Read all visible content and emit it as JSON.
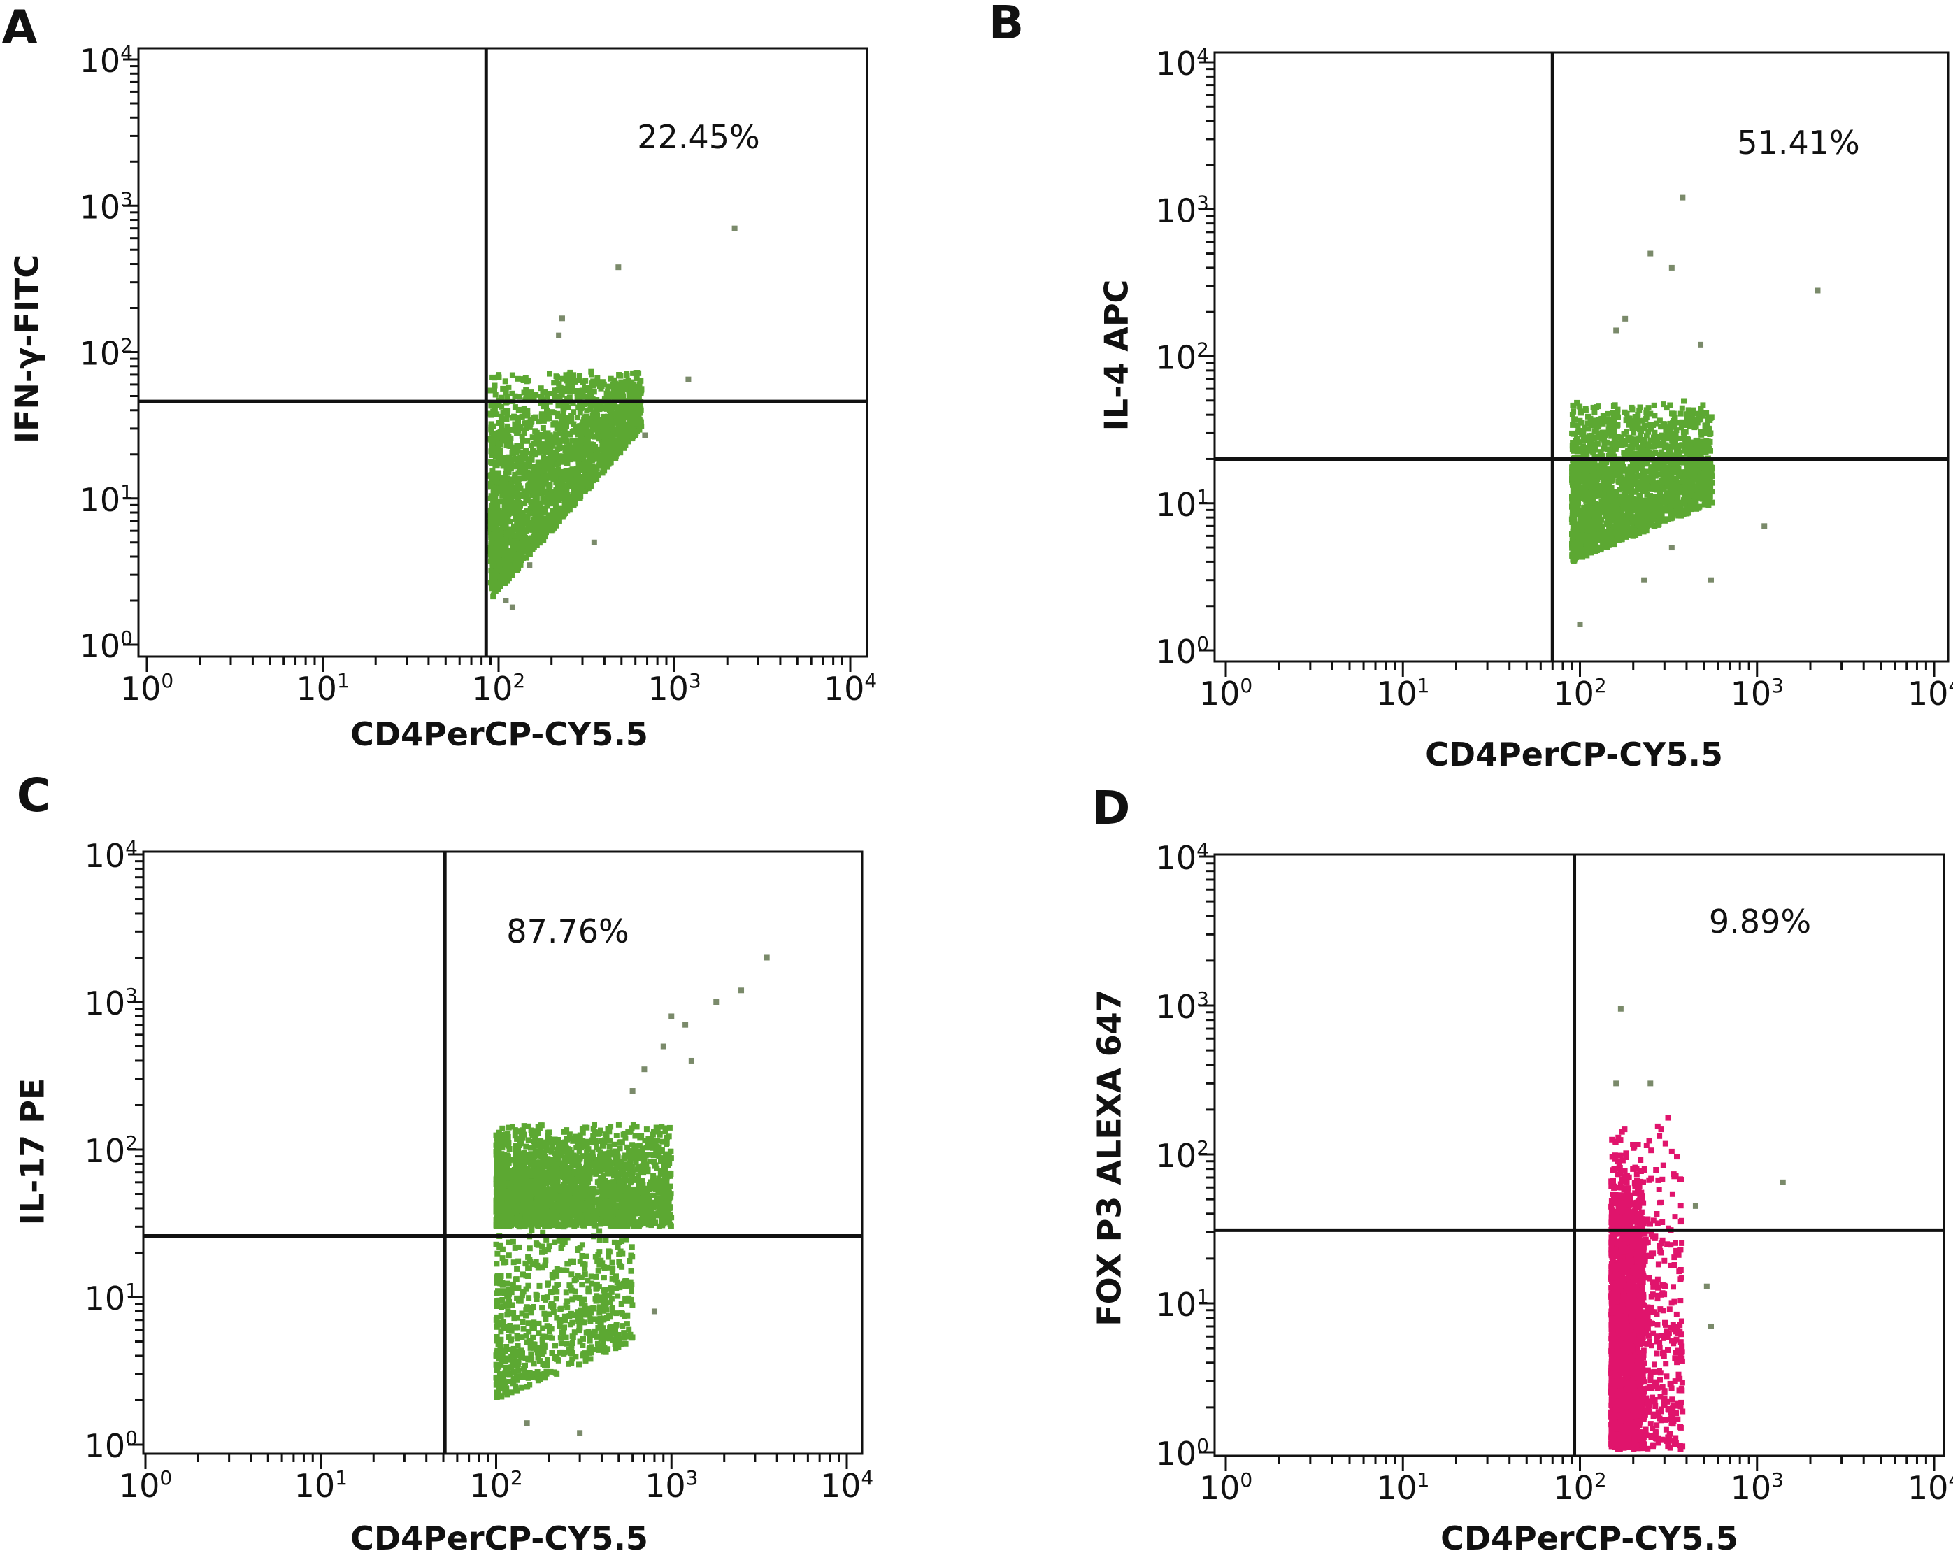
{
  "chart_data": [
    {
      "panel": "A",
      "type": "scatter",
      "xscale": "log",
      "yscale": "log",
      "xlim": [
        1,
        10000
      ],
      "ylim": [
        1,
        10000
      ],
      "xlabel": "CD4PerCP-CY5.5",
      "ylabel": "IFN-γ-FITC",
      "x_ticks": [
        {
          "base": "10",
          "exp": "0"
        },
        {
          "base": "10",
          "exp": "1"
        },
        {
          "base": "10",
          "exp": "2"
        },
        {
          "base": "10",
          "exp": "3"
        },
        {
          "base": "10",
          "exp": "4"
        }
      ],
      "y_ticks": [
        {
          "base": "10",
          "exp": "0"
        },
        {
          "base": "10",
          "exp": "1"
        },
        {
          "base": "10",
          "exp": "2"
        },
        {
          "base": "10",
          "exp": "3"
        },
        {
          "base": "10",
          "exp": "4"
        }
      ],
      "gate": {
        "x": 85,
        "y": 46
      },
      "quadrant_annotation": "22.45%",
      "color": "#5ca832",
      "populations": [
        {
          "x_range": [
            90,
            650
          ],
          "y_range": [
            2,
            75
          ],
          "y_min_at_x_max": 30,
          "count": 2200
        }
      ],
      "outliers": [
        [
          2200,
          700
        ],
        [
          480,
          380
        ],
        [
          1200,
          65
        ],
        [
          230,
          170
        ],
        [
          220,
          130
        ],
        [
          350,
          5
        ],
        [
          680,
          27
        ],
        [
          110,
          2
        ],
        [
          120,
          1.8
        ],
        [
          150,
          3.5
        ]
      ]
    },
    {
      "panel": "B",
      "type": "scatter",
      "xscale": "log",
      "yscale": "log",
      "xlim": [
        1,
        10000
      ],
      "ylim": [
        1,
        10000
      ],
      "xlabel": "CD4PerCP-CY5.5",
      "ylabel": "IL-4 APC",
      "x_ticks": [
        {
          "base": "10",
          "exp": "0"
        },
        {
          "base": "10",
          "exp": "1"
        },
        {
          "base": "10",
          "exp": "2"
        },
        {
          "base": "10",
          "exp": "3"
        },
        {
          "base": "10",
          "exp": "4"
        }
      ],
      "y_ticks": [
        {
          "base": "10",
          "exp": "0"
        },
        {
          "base": "10",
          "exp": "1"
        },
        {
          "base": "10",
          "exp": "2"
        },
        {
          "base": "10",
          "exp": "3"
        },
        {
          "base": "10",
          "exp": "4"
        }
      ],
      "gate": {
        "x": 70,
        "y": 20
      },
      "quadrant_annotation": "51.41%",
      "color": "#5ca832",
      "populations": [
        {
          "x_range": [
            90,
            560
          ],
          "y_range": [
            4,
            50
          ],
          "y_min_at_x_max": 10,
          "count": 2000
        }
      ],
      "outliers": [
        [
          380,
          1200
        ],
        [
          250,
          500
        ],
        [
          330,
          400
        ],
        [
          2200,
          280
        ],
        [
          1100,
          7
        ],
        [
          180,
          180
        ],
        [
          160,
          150
        ],
        [
          480,
          120
        ],
        [
          330,
          5
        ],
        [
          230,
          3
        ],
        [
          100,
          1.5
        ],
        [
          550,
          3
        ]
      ]
    },
    {
      "panel": "C",
      "type": "scatter",
      "xscale": "log",
      "yscale": "log",
      "xlim": [
        1,
        10000
      ],
      "ylim": [
        1,
        10000
      ],
      "xlabel": "CD4PerCP-CY5.5",
      "ylabel": "IL-17 PE",
      "x_ticks": [
        {
          "base": "10",
          "exp": "0"
        },
        {
          "base": "10",
          "exp": "1"
        },
        {
          "base": "10",
          "exp": "2"
        },
        {
          "base": "10",
          "exp": "3"
        },
        {
          "base": "10",
          "exp": "4"
        }
      ],
      "y_ticks": [
        {
          "base": "10",
          "exp": "0"
        },
        {
          "base": "10",
          "exp": "1"
        },
        {
          "base": "10",
          "exp": "2"
        },
        {
          "base": "10",
          "exp": "3"
        },
        {
          "base": "10",
          "exp": "4"
        }
      ],
      "gate": {
        "x": 51,
        "y": 26
      },
      "quadrant_annotation": "87.76%",
      "color": "#5ca832",
      "populations": [
        {
          "x_range": [
            100,
            1000
          ],
          "y_range": [
            30,
            150
          ],
          "count": 2200
        },
        {
          "x_range": [
            100,
            600
          ],
          "y_range": [
            2,
            30
          ],
          "y_min_at_x_max": 5,
          "count": 700
        }
      ],
      "outliers": [
        [
          3500,
          2000
        ],
        [
          2500,
          1200
        ],
        [
          1800,
          1000
        ],
        [
          1200,
          700
        ],
        [
          900,
          500
        ],
        [
          1000,
          800
        ],
        [
          700,
          350
        ],
        [
          1300,
          400
        ],
        [
          600,
          250
        ],
        [
          150,
          1.4
        ],
        [
          300,
          1.2
        ],
        [
          800,
          8
        ]
      ]
    },
    {
      "panel": "D",
      "type": "scatter",
      "xscale": "log",
      "yscale": "log",
      "xlim": [
        1,
        10000
      ],
      "ylim": [
        1,
        10000
      ],
      "xlabel": "CD4PerCP-CY5.5",
      "ylabel": "FOX P3 ALEXA 647",
      "x_ticks": [
        {
          "base": "10",
          "exp": "0"
        },
        {
          "base": "10",
          "exp": "1"
        },
        {
          "base": "10",
          "exp": "2"
        },
        {
          "base": "10",
          "exp": "3"
        },
        {
          "base": "10",
          "exp": "4"
        }
      ],
      "y_ticks": [
        {
          "base": "10",
          "exp": "0"
        },
        {
          "base": "10",
          "exp": "1"
        },
        {
          "base": "10",
          "exp": "2"
        },
        {
          "base": "10",
          "exp": "3"
        },
        {
          "base": "10",
          "exp": "4"
        }
      ],
      "gate": {
        "x": 93,
        "y": 31
      },
      "quadrant_annotation": "9.89%",
      "color": "#e0146c",
      "populations": [
        {
          "x_range": [
            150,
            230
          ],
          "y_range": [
            1.05,
            90
          ],
          "count": 1800
        },
        {
          "x_range": [
            150,
            380
          ],
          "y_range": [
            1.05,
            180
          ],
          "count": 700
        }
      ],
      "outliers": [
        [
          170,
          950
        ],
        [
          160,
          300
        ],
        [
          250,
          300
        ],
        [
          1400,
          65
        ],
        [
          520,
          13
        ],
        [
          550,
          7
        ],
        [
          450,
          45
        ]
      ]
    }
  ]
}
